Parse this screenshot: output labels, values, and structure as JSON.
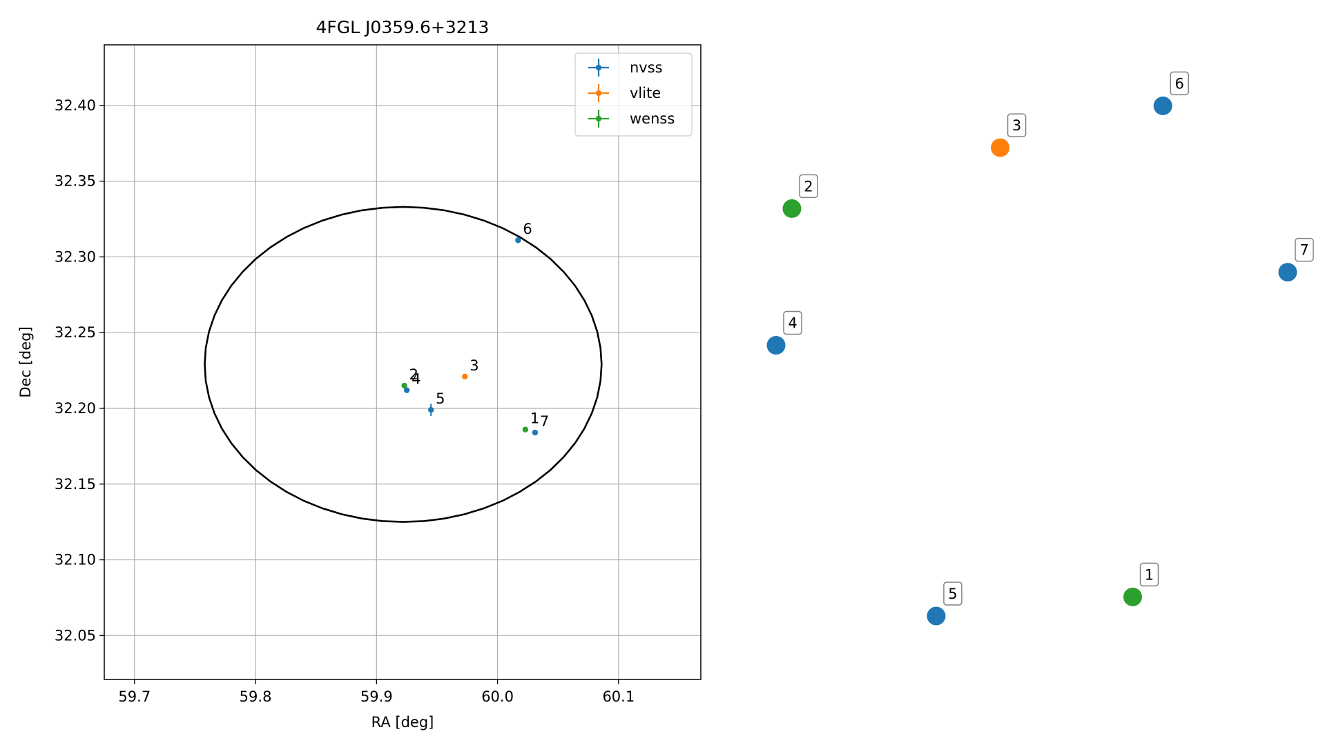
{
  "chart_data": [
    {
      "type": "scatter",
      "title": "4FGL J0359.6+3213",
      "xlabel": "RA [deg]",
      "ylabel": "Dec [deg]",
      "xlim": [
        59.675,
        60.168
      ],
      "ylim": [
        32.021,
        32.44
      ],
      "xticks": [
        "59.7",
        "59.8",
        "59.9",
        "60.0",
        "60.1"
      ],
      "yticks": [
        "32.05",
        "32.10",
        "32.15",
        "32.20",
        "32.25",
        "32.30",
        "32.35",
        "32.40"
      ],
      "grid": true,
      "legend_position": "upper right",
      "series": [
        {
          "name": "nvss",
          "color": "#1f77b4",
          "points": [
            {
              "label": "4",
              "x": 59.925,
              "y": 32.212
            },
            {
              "label": "5",
              "x": 59.945,
              "y": 32.199,
              "yerr": 0.004
            },
            {
              "label": "6",
              "x": 60.017,
              "y": 32.311
            },
            {
              "label": "7",
              "x": 60.031,
              "y": 32.184
            }
          ]
        },
        {
          "name": "vlite",
          "color": "#ff7f0e",
          "points": [
            {
              "label": "3",
              "x": 59.973,
              "y": 32.221
            }
          ]
        },
        {
          "name": "wenss",
          "color": "#2ca02c",
          "points": [
            {
              "label": "1",
              "x": 60.023,
              "y": 32.186
            },
            {
              "label": "2",
              "x": 59.923,
              "y": 32.215
            }
          ]
        }
      ],
      "ellipse": {
        "center_x": 59.922,
        "center_y": 32.229,
        "semi_x": 0.164,
        "semi_y": 0.104,
        "color": "#000000"
      }
    },
    {
      "type": "scatter",
      "axes_visible": false,
      "points": [
        {
          "label": "1",
          "color": "#2ca02c",
          "x": 0.697,
          "y": 0.036
        },
        {
          "label": "2",
          "color": "#2ca02c",
          "x": 0.031,
          "y": 0.769
        },
        {
          "label": "3",
          "color": "#ff7f0e",
          "x": 0.438,
          "y": 0.884
        },
        {
          "label": "4",
          "color": "#1f77b4",
          "x": 0.0,
          "y": 0.511
        },
        {
          "label": "5",
          "color": "#1f77b4",
          "x": 0.313,
          "y": 0.0
        },
        {
          "label": "6",
          "color": "#1f77b4",
          "x": 0.756,
          "y": 0.963
        },
        {
          "label": "7",
          "color": "#1f77b4",
          "x": 1.0,
          "y": 0.649
        }
      ]
    }
  ]
}
